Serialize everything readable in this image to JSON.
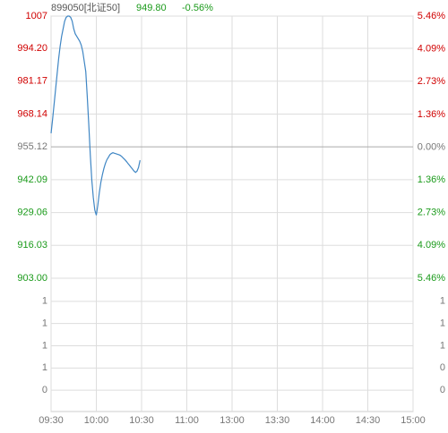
{
  "chart_data": {
    "type": "line",
    "header": {
      "code": "899050[北证50]",
      "price": "949.80",
      "change": "-0.56%"
    },
    "series": [
      {
        "name": "899050",
        "color": "#3f86c4",
        "values": [
          960.5,
          966,
          972,
          978,
          984,
          990,
          995,
          999,
          1002,
          1005,
          1006.5,
          1007,
          1007,
          1006.5,
          1005,
          1002,
          1000,
          999,
          998,
          997,
          995.5,
          993,
          989,
          985,
          975,
          964,
          952,
          942,
          935,
          930,
          928,
          932,
          937,
          941,
          944,
          946.5,
          948.5,
          950,
          951,
          952,
          952.5,
          952.8,
          952.6,
          952.4,
          952.2,
          952,
          951.7,
          951.2,
          950.6,
          950,
          949.3,
          948.5,
          947.8,
          947,
          946.3,
          945.5,
          945,
          945.5,
          947,
          949.8
        ]
      }
    ],
    "xlim": [
      0,
      240
    ],
    "xticks": [
      {
        "value": 0,
        "label": "09:30"
      },
      {
        "value": 30,
        "label": "10:00"
      },
      {
        "value": 60,
        "label": "10:30"
      },
      {
        "value": 90,
        "label": "11:00"
      },
      {
        "value": 120,
        "label": "13:00"
      },
      {
        "value": 150,
        "label": "13:30"
      },
      {
        "value": 180,
        "label": "14:00"
      },
      {
        "value": 210,
        "label": "14:30"
      },
      {
        "value": 240,
        "label": "15:00"
      }
    ],
    "ylim": [
      903,
      1007
    ],
    "yticks": [
      1007,
      {
        "value": 994.2,
        "label": "994.20"
      },
      981.17,
      968.14,
      955.12,
      942.09,
      929.06,
      916.03,
      {
        "value": 903,
        "label": "903.00"
      }
    ],
    "y2lim": [
      -5.46,
      5.46
    ],
    "y2ticks": [
      {
        "value": 5.46,
        "label": "5.46%"
      },
      {
        "value": 4.09,
        "label": "4.09%"
      },
      {
        "value": 2.73,
        "label": "2.73%"
      },
      {
        "value": 1.36,
        "label": "1.36%"
      },
      {
        "value": 0,
        "label": "0.00%"
      },
      {
        "value": -1.36,
        "label": "1.36%"
      },
      {
        "value": -2.73,
        "label": "2.73%"
      },
      {
        "value": -4.09,
        "label": "4.09%"
      },
      {
        "value": -5.46,
        "label": "5.46%"
      }
    ],
    "volume_left_ticks": [
      1,
      1,
      1,
      1,
      0
    ],
    "volume_right_ticks": [
      1,
      1,
      1,
      0,
      0
    ],
    "grid": true
  }
}
